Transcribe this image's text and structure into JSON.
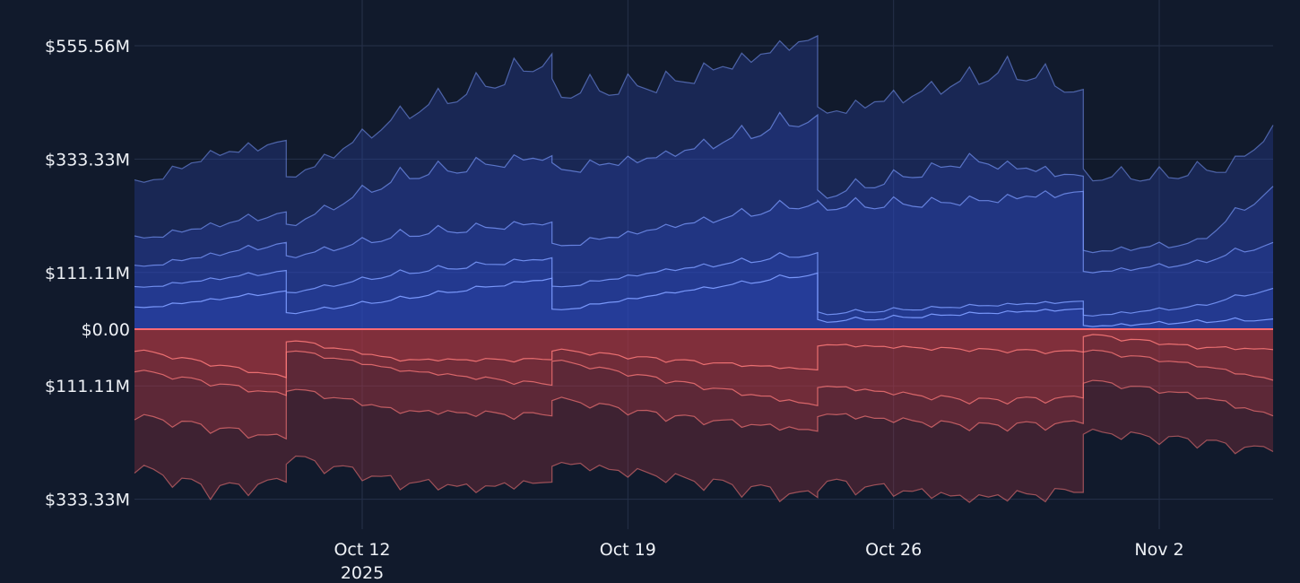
{
  "chart_data": {
    "type": "area",
    "title": "",
    "xlabel": "",
    "ylabel": "",
    "x_range": [
      "2025-10-06",
      "2025-11-05"
    ],
    "x_ticks": [
      {
        "date": "2025-10-12",
        "label": "Oct 12",
        "sublabel": "2025"
      },
      {
        "date": "2025-10-19",
        "label": "Oct 19",
        "sublabel": ""
      },
      {
        "date": "2025-10-26",
        "label": "Oct 26",
        "sublabel": ""
      },
      {
        "date": "2025-11-02",
        "label": "Nov 2",
        "sublabel": ""
      }
    ],
    "y_range_millions": [
      -394,
      555.56
    ],
    "y_ticks": [
      {
        "value": 555.56,
        "label": "$555.56M"
      },
      {
        "value": 333.33,
        "label": "$333.33M"
      },
      {
        "value": 111.11,
        "label": "$111.11M"
      },
      {
        "value": 0,
        "label": "$0.00"
      },
      {
        "value": -111.11,
        "label": "$111.11M"
      },
      {
        "value": -333.33,
        "label": "$333.33M"
      }
    ],
    "grid": true,
    "legend": "none",
    "colors": {
      "background": "#111a2c",
      "grid": "#26314a",
      "positive_line": "#7d9cff",
      "positive_fill": "#2f4bbf",
      "negative_line": "#ff7b7b",
      "negative_fill": "#b53a44",
      "zero_line": "#ff6b73"
    },
    "stack_note": "cumulative stacked levels in $M; positive stack above zero, negative stack below zero",
    "positive_series": [
      {
        "points": [
          [
            "2025-10-06",
            40
          ],
          [
            "2025-10-10",
            75
          ],
          [
            "2025-10-10",
            30
          ],
          [
            "2025-10-13",
            60
          ],
          [
            "2025-10-17",
            100
          ],
          [
            "2025-10-17",
            35
          ],
          [
            "2025-10-20",
            70
          ],
          [
            "2025-10-24",
            110
          ],
          [
            "2025-10-24",
            15
          ],
          [
            "2025-10-28",
            30
          ],
          [
            "2025-10-31",
            40
          ],
          [
            "2025-10-31",
            5
          ],
          [
            "2025-11-03",
            15
          ],
          [
            "2025-11-05",
            20
          ]
        ]
      },
      {
        "points": [
          [
            "2025-10-06",
            80
          ],
          [
            "2025-10-10",
            115
          ],
          [
            "2025-10-10",
            70
          ],
          [
            "2025-10-13",
            110
          ],
          [
            "2025-10-17",
            140
          ],
          [
            "2025-10-17",
            80
          ],
          [
            "2025-10-20",
            115
          ],
          [
            "2025-10-24",
            150
          ],
          [
            "2025-10-24",
            30
          ],
          [
            "2025-10-28",
            45
          ],
          [
            "2025-10-31",
            55
          ],
          [
            "2025-10-31",
            25
          ],
          [
            "2025-11-03",
            45
          ],
          [
            "2025-11-05",
            80
          ]
        ]
      },
      {
        "points": [
          [
            "2025-10-06",
            120
          ],
          [
            "2025-10-10",
            170
          ],
          [
            "2025-10-10",
            140
          ],
          [
            "2025-10-13",
            185
          ],
          [
            "2025-10-17",
            210
          ],
          [
            "2025-10-17",
            160
          ],
          [
            "2025-10-20",
            200
          ],
          [
            "2025-10-24",
            250
          ],
          [
            "2025-10-24",
            240
          ],
          [
            "2025-10-28",
            250
          ],
          [
            "2025-10-31",
            270
          ],
          [
            "2025-10-31",
            110
          ],
          [
            "2025-11-03",
            130
          ],
          [
            "2025-11-05",
            170
          ]
        ]
      },
      {
        "points": [
          [
            "2025-10-06",
            175
          ],
          [
            "2025-10-10",
            230
          ],
          [
            "2025-10-10",
            200
          ],
          [
            "2025-10-13",
            300
          ],
          [
            "2025-10-17",
            340
          ],
          [
            "2025-10-17",
            310
          ],
          [
            "2025-10-20",
            340
          ],
          [
            "2025-10-24",
            420
          ],
          [
            "2025-10-24",
            260
          ],
          [
            "2025-10-28",
            330
          ],
          [
            "2025-10-31",
            300
          ],
          [
            "2025-10-31",
            150
          ],
          [
            "2025-11-03",
            170
          ],
          [
            "2025-11-05",
            280
          ]
        ]
      },
      {
        "points": [
          [
            "2025-10-06",
            280
          ],
          [
            "2025-10-08",
            340
          ],
          [
            "2025-10-10",
            370
          ],
          [
            "2025-10-10",
            290
          ],
          [
            "2025-10-13",
            420
          ],
          [
            "2025-10-16",
            500
          ],
          [
            "2025-10-17",
            540
          ],
          [
            "2025-10-17",
            465
          ],
          [
            "2025-10-20",
            480
          ],
          [
            "2025-10-23",
            550
          ],
          [
            "2025-10-24",
            575
          ],
          [
            "2025-10-24",
            420
          ],
          [
            "2025-10-27",
            470
          ],
          [
            "2025-10-29",
            510
          ],
          [
            "2025-10-31",
            470
          ],
          [
            "2025-10-31",
            300
          ],
          [
            "2025-11-02",
            300
          ],
          [
            "2025-11-04",
            320
          ],
          [
            "2025-11-05",
            400
          ]
        ]
      }
    ],
    "negative_series": [
      {
        "points": [
          [
            "2025-10-06",
            -40
          ],
          [
            "2025-10-10",
            -95
          ],
          [
            "2025-10-10",
            -20
          ],
          [
            "2025-10-13",
            -60
          ],
          [
            "2025-10-17",
            -60
          ],
          [
            "2025-10-17",
            -40
          ],
          [
            "2025-10-20",
            -60
          ],
          [
            "2025-10-24",
            -80
          ],
          [
            "2025-10-24",
            -30
          ],
          [
            "2025-10-28",
            -40
          ],
          [
            "2025-10-31",
            -45
          ],
          [
            "2025-10-31",
            -10
          ],
          [
            "2025-11-03",
            -35
          ],
          [
            "2025-11-05",
            -40
          ]
        ]
      },
      {
        "points": [
          [
            "2025-10-06",
            -80
          ],
          [
            "2025-10-10",
            -130
          ],
          [
            "2025-10-10",
            -40
          ],
          [
            "2025-10-13",
            -80
          ],
          [
            "2025-10-17",
            -110
          ],
          [
            "2025-10-17",
            -60
          ],
          [
            "2025-10-20",
            -100
          ],
          [
            "2025-10-24",
            -150
          ],
          [
            "2025-10-24",
            -110
          ],
          [
            "2025-10-28",
            -140
          ],
          [
            "2025-10-31",
            -135
          ],
          [
            "2025-10-31",
            -40
          ],
          [
            "2025-11-03",
            -70
          ],
          [
            "2025-11-05",
            -100
          ]
        ]
      },
      {
        "points": [
          [
            "2025-10-06",
            -170
          ],
          [
            "2025-10-10",
            -215
          ],
          [
            "2025-10-10",
            -115
          ],
          [
            "2025-10-13",
            -160
          ],
          [
            "2025-10-17",
            -170
          ],
          [
            "2025-10-17",
            -135
          ],
          [
            "2025-10-20",
            -170
          ],
          [
            "2025-10-24",
            -200
          ],
          [
            "2025-10-24",
            -165
          ],
          [
            "2025-10-28",
            -190
          ],
          [
            "2025-10-31",
            -185
          ],
          [
            "2025-10-31",
            -100
          ],
          [
            "2025-11-03",
            -130
          ],
          [
            "2025-11-05",
            -170
          ]
        ]
      },
      {
        "points": [
          [
            "2025-10-06",
            -270
          ],
          [
            "2025-10-08",
            -315
          ],
          [
            "2025-10-10",
            -300
          ],
          [
            "2025-10-10",
            -250
          ],
          [
            "2025-10-13",
            -300
          ],
          [
            "2025-10-15",
            -310
          ],
          [
            "2025-10-17",
            -300
          ],
          [
            "2025-10-17",
            -260
          ],
          [
            "2025-10-20",
            -290
          ],
          [
            "2025-10-24",
            -330
          ],
          [
            "2025-10-24",
            -300
          ],
          [
            "2025-10-28",
            -330
          ],
          [
            "2025-10-31",
            -320
          ],
          [
            "2025-10-31",
            -200
          ],
          [
            "2025-11-03",
            -220
          ],
          [
            "2025-11-05",
            -240
          ]
        ]
      }
    ]
  }
}
